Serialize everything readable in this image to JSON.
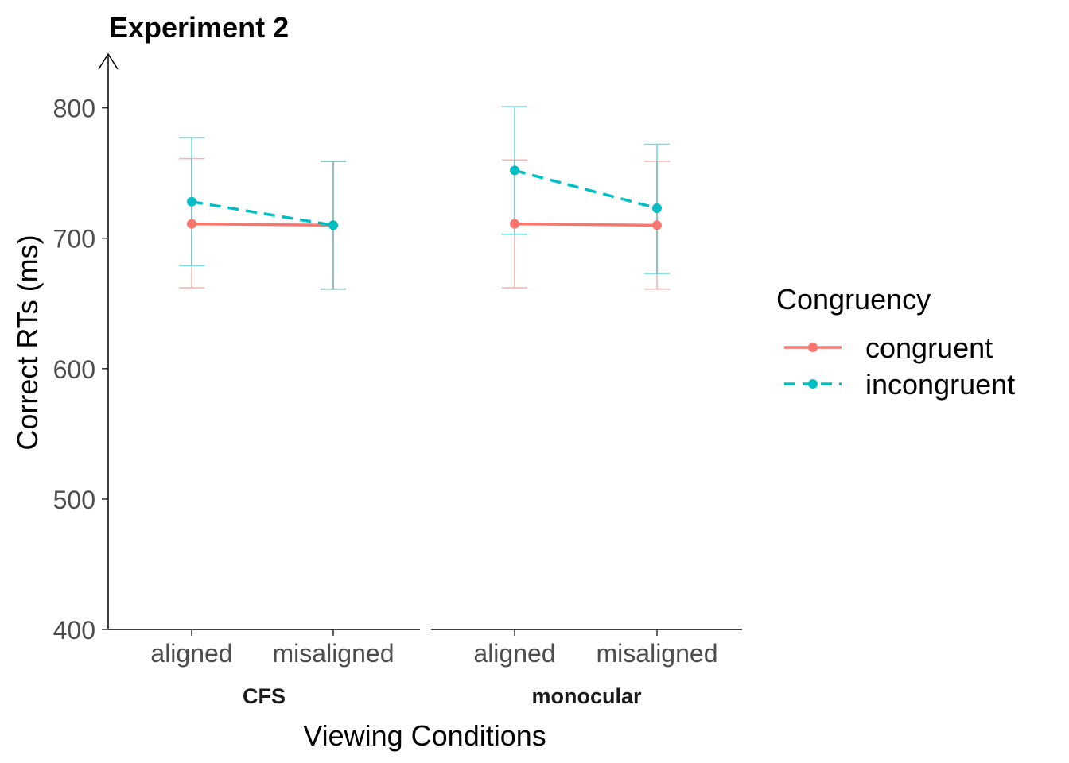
{
  "chart_data": {
    "type": "line",
    "title": "Experiment 2",
    "xlabel": "Viewing Conditions",
    "ylabel": "Correct RTs (ms)",
    "ylim": [
      400,
      840
    ],
    "yticks": [
      400,
      500,
      600,
      700,
      800
    ],
    "panels": [
      {
        "label": "CFS",
        "categories": [
          "aligned",
          "misaligned"
        ]
      },
      {
        "label": "monocular",
        "categories": [
          "aligned",
          "misaligned"
        ]
      }
    ],
    "legend": {
      "title": "Congruency",
      "placement": "right"
    },
    "series": [
      {
        "name": "congruent",
        "color": "#F8766D",
        "linestyle": "solid",
        "panels": [
          {
            "values": [
              711,
              710
            ],
            "lower": [
              662,
              661
            ],
            "upper": [
              761,
              759
            ]
          },
          {
            "values": [
              711,
              710
            ],
            "lower": [
              662,
              661
            ],
            "upper": [
              760,
              759
            ]
          }
        ]
      },
      {
        "name": "incongruent",
        "color": "#00BFC4",
        "linestyle": "dashed",
        "panels": [
          {
            "values": [
              728,
              710
            ],
            "lower": [
              679,
              661
            ],
            "upper": [
              777,
              759
            ]
          },
          {
            "values": [
              752,
              723
            ],
            "lower": [
              703,
              673
            ],
            "upper": [
              801,
              772
            ]
          }
        ]
      }
    ],
    "grid": false
  }
}
